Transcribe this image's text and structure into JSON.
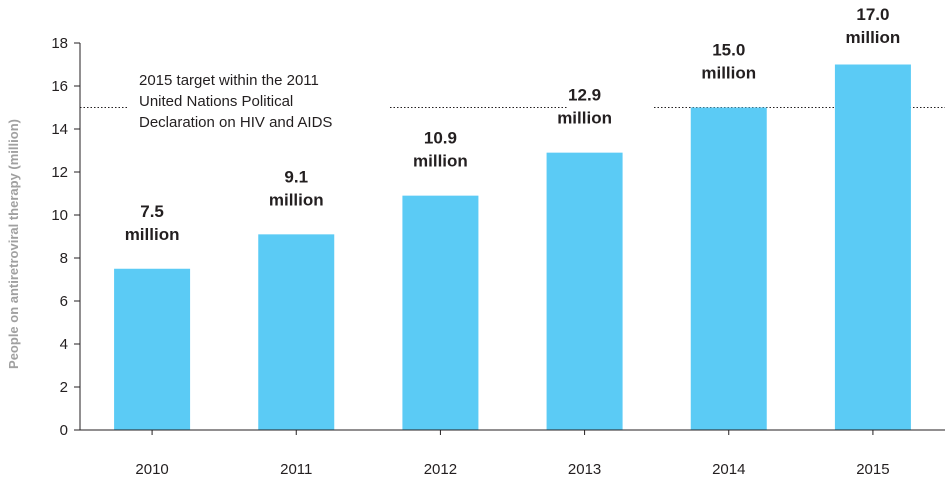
{
  "chart_data": {
    "type": "bar",
    "categories": [
      "2010",
      "2011",
      "2012",
      "2013",
      "2014",
      "2015"
    ],
    "values": [
      7.5,
      9.1,
      10.9,
      12.9,
      15.0,
      17.0
    ],
    "data_labels": [
      [
        "7.5",
        "million"
      ],
      [
        "9.1",
        "million"
      ],
      [
        "10.9",
        "million"
      ],
      [
        "12.9",
        "million"
      ],
      [
        "15.0",
        "million"
      ],
      [
        "17.0",
        "million"
      ]
    ],
    "ylabel": "People on antiretroviral therapy (million)",
    "xlabel": "",
    "title": "",
    "ylim": [
      0,
      18
    ],
    "yticks": [
      0,
      2,
      4,
      6,
      8,
      10,
      12,
      14,
      16,
      18
    ],
    "bar_color": "#5bcbf5",
    "target": {
      "value": 15,
      "label_lines": [
        "2015 target within the 2011",
        "United Nations Political",
        "Declaration on HIV and AIDS"
      ]
    },
    "grid": false,
    "legend": "none"
  }
}
